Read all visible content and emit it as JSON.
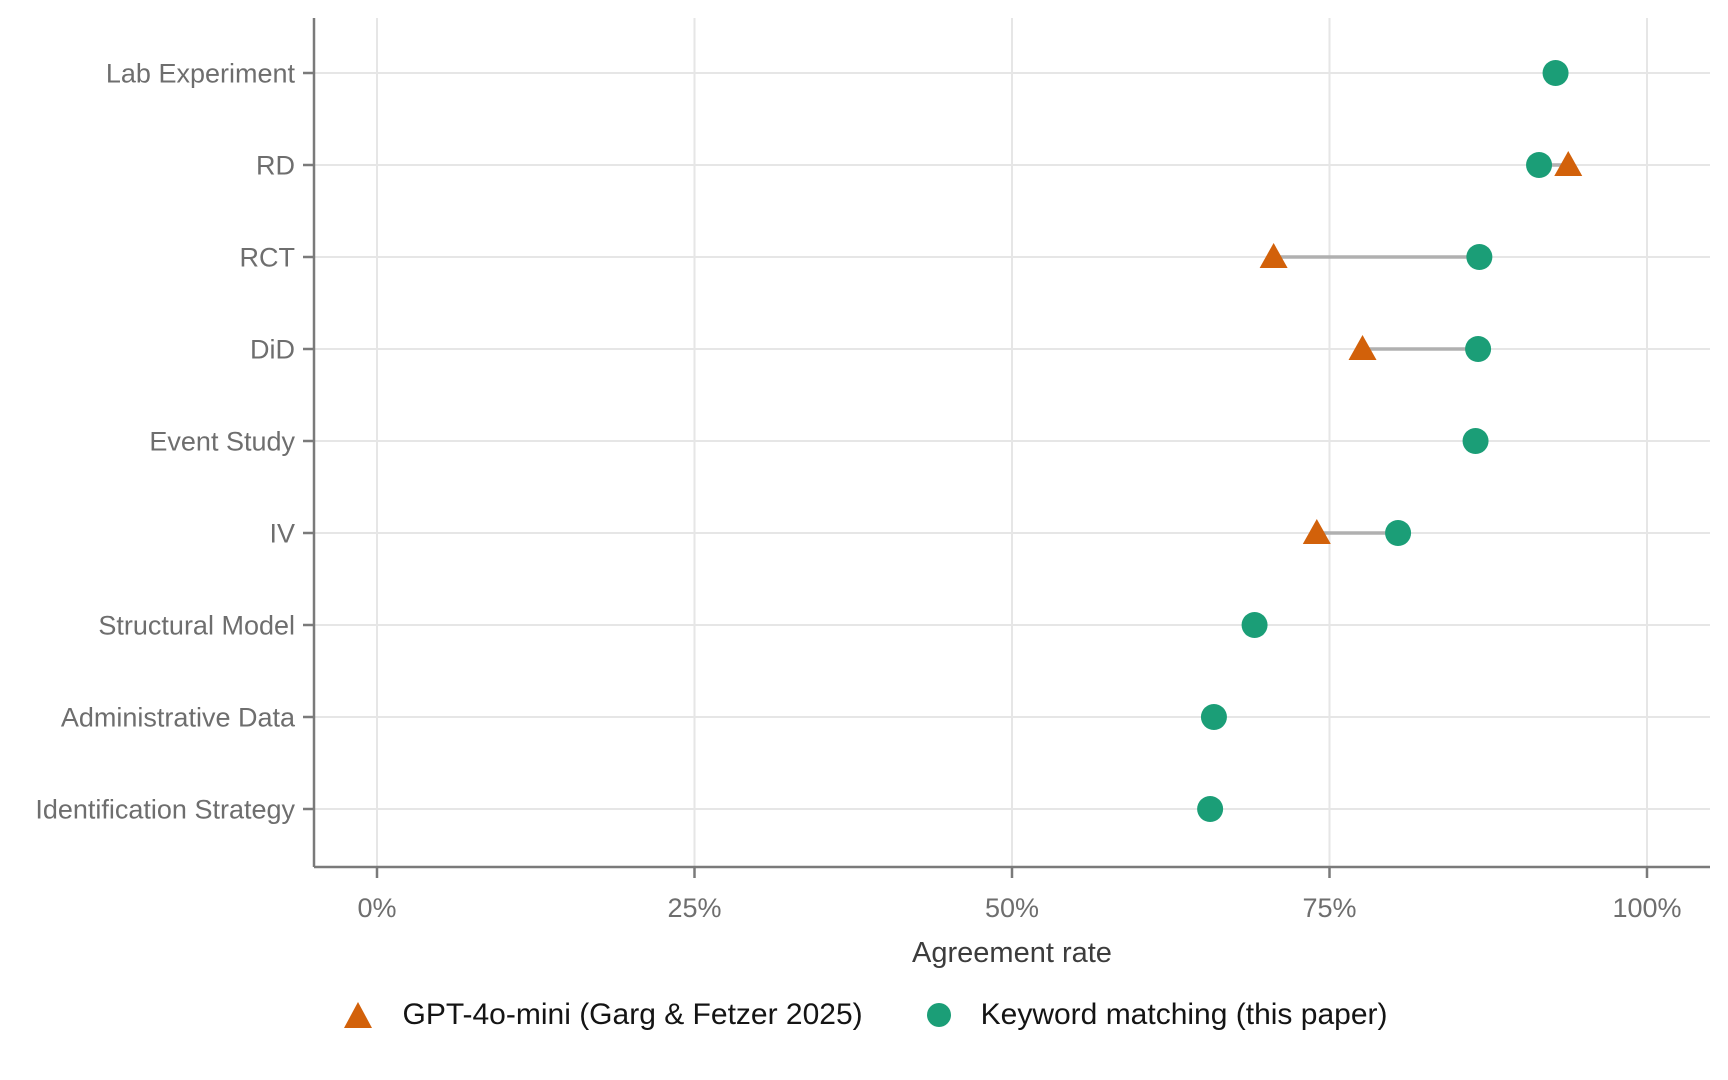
{
  "chart_data": {
    "type": "scatter",
    "variant": "dumbbell-dot-plot",
    "title": "",
    "xlabel": "Agreement rate",
    "ylabel": "",
    "x_ticks": [
      "0%",
      "25%",
      "50%",
      "75%",
      "100%"
    ],
    "x_tick_values": [
      0,
      25,
      50,
      75,
      100
    ],
    "xlim": [
      -5,
      105
    ],
    "grid": true,
    "legend_position": "bottom",
    "categories": [
      "Lab Experiment",
      "RD",
      "RCT",
      "DiD",
      "Event Study",
      "IV",
      "Structural Model",
      "Administrative Data",
      "Identification Strategy"
    ],
    "series": [
      {
        "name": "GPT-4o-mini (Garg & Fetzer 2025)",
        "marker": "triangle",
        "color": "#d2610a",
        "values": [
          null,
          93.8,
          70.6,
          77.6,
          null,
          74.0,
          null,
          null,
          null
        ]
      },
      {
        "name": "Keyword matching (this paper)",
        "marker": "circle",
        "color": "#1b9e77",
        "values": [
          92.8,
          91.5,
          86.8,
          86.7,
          86.5,
          80.4,
          69.1,
          65.9,
          65.6
        ]
      }
    ],
    "connector_color": "#b0b0b0",
    "colors": {
      "gridline": "#e6e6e6",
      "axis_line": "#7a7a7a",
      "tick_label": "#6e6e6e",
      "category_label": "#6e6e6e",
      "axis_title": "#3c3c3c"
    }
  }
}
